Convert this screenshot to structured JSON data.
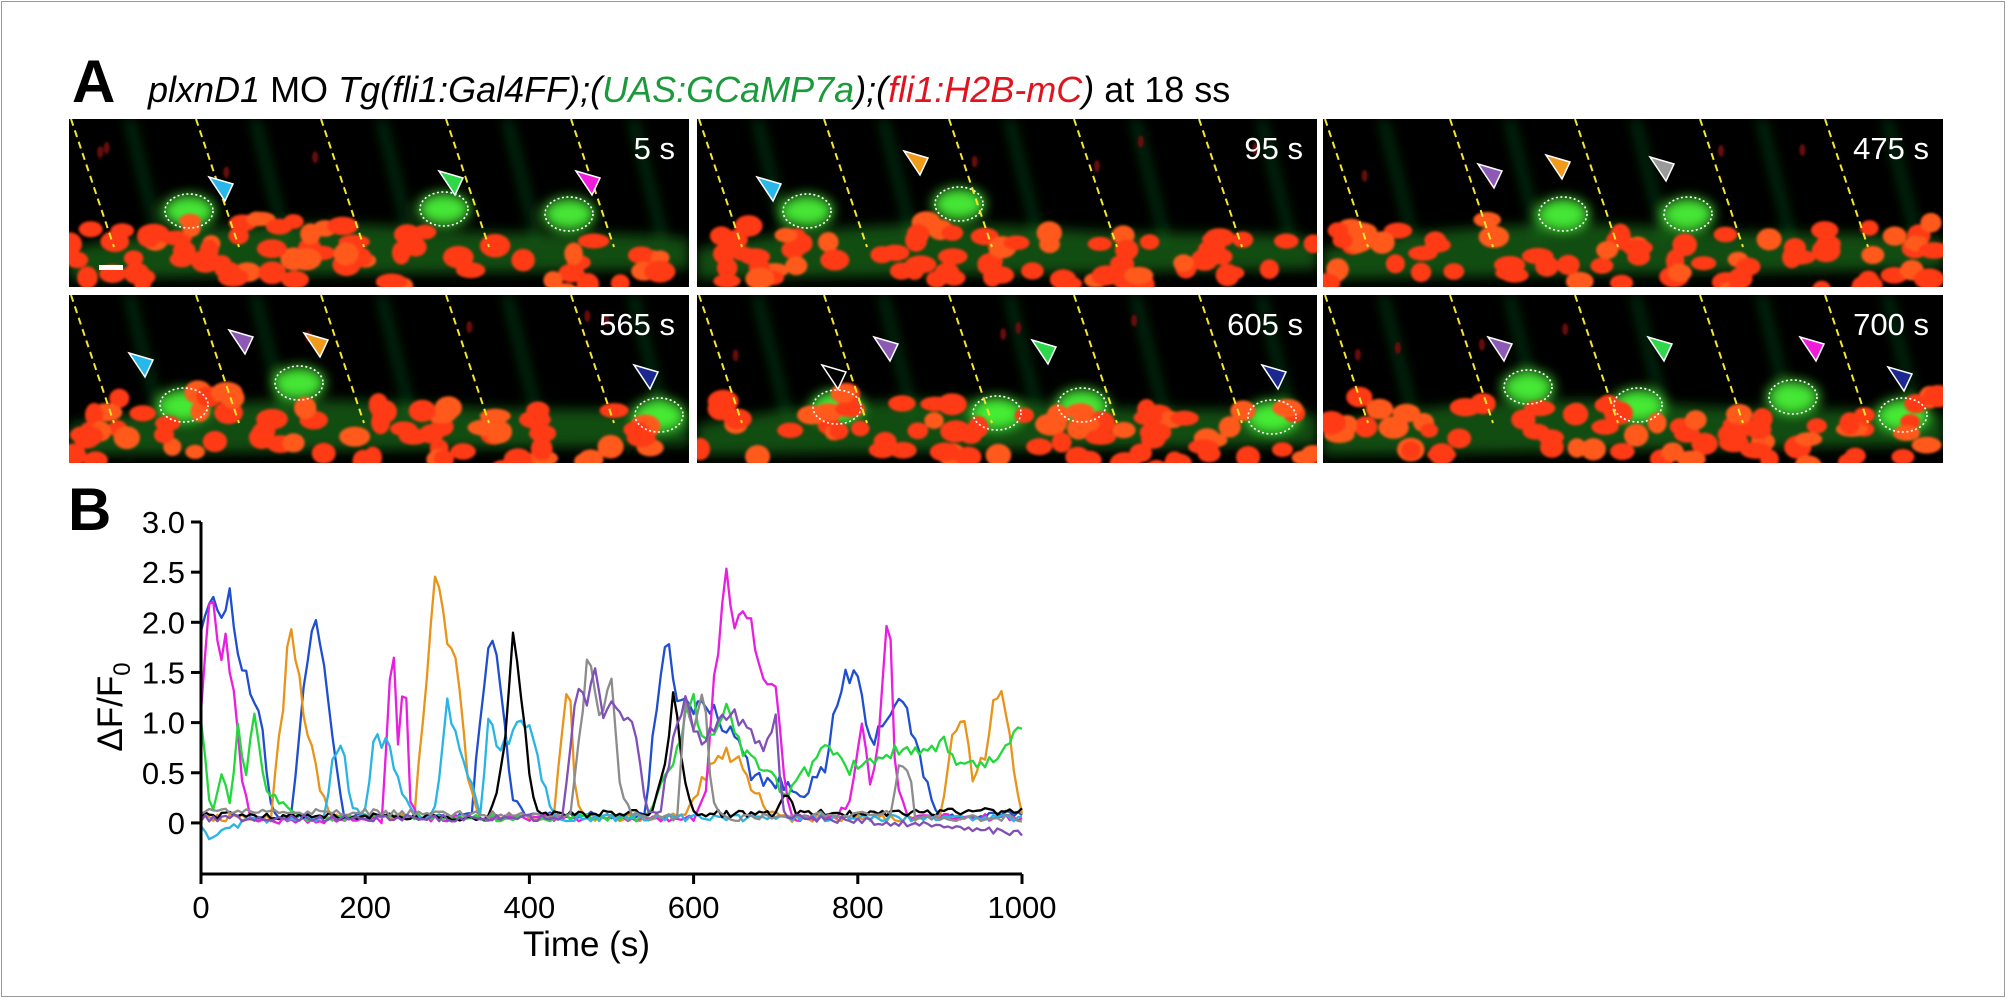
{
  "figure": {
    "panel_a_label": "A",
    "panel_b_label": "B",
    "title_parts": [
      {
        "text": "plxnD1",
        "italic": true,
        "color": "#000000"
      },
      {
        "text": " MO ",
        "italic": false,
        "color": "#000000"
      },
      {
        "text": "Tg(fli1:Gal4FF);(",
        "italic": true,
        "color": "#000000"
      },
      {
        "text": "UAS:GCaMP7a",
        "italic": true,
        "color": "#1a9a3a"
      },
      {
        "text": ");(",
        "italic": true,
        "color": "#000000"
      },
      {
        "text": "fli1:H2B-mC",
        "italic": true,
        "color": "#e0141e"
      },
      {
        "text": ")",
        "italic": true,
        "color": "#000000"
      },
      {
        "text": " at 18 ss",
        "italic": false,
        "color": "#000000"
      }
    ],
    "time_labels": [
      "5 s",
      "95 s",
      "475 s",
      "565 s",
      "605 s",
      "700 s"
    ],
    "arrowhead_colors": {
      "cyan": "#29b6e8",
      "green": "#2ed84a",
      "magenta": "#f01cdc",
      "orange": "#f09a1c",
      "purple": "#8c5ab4",
      "gray": "#9a9a9a",
      "navy": "#1a2890",
      "white": "#ffffff"
    }
  },
  "chart_data": {
    "type": "line",
    "title": "",
    "xlabel": "Time (s)",
    "ylabel_main": "ΔF/F",
    "ylabel_sub": "0",
    "xlim": [
      0,
      1000
    ],
    "ylim": [
      -0.25,
      3.0
    ],
    "xticks": [
      0,
      200,
      400,
      600,
      800,
      1000
    ],
    "yticks": [
      0,
      0.5,
      1.0,
      1.5,
      2.0,
      2.5,
      3.0
    ],
    "ytick_labels": [
      "0",
      "0.5",
      "1.0",
      "1.5",
      "2.0",
      "2.5",
      "3.0"
    ],
    "grid": false,
    "series": [
      {
        "color": "#1f4fd0",
        "keys": [
          [
            0,
            2.0
          ],
          [
            10,
            2.2
          ],
          [
            25,
            2.1
          ],
          [
            35,
            2.3
          ],
          [
            45,
            1.7
          ],
          [
            60,
            1.3
          ],
          [
            75,
            0.9
          ],
          [
            85,
            0.2
          ],
          [
            95,
            0.05
          ],
          [
            110,
            0.08
          ],
          [
            125,
            1.4
          ],
          [
            140,
            2.05
          ],
          [
            150,
            1.6
          ],
          [
            160,
            0.8
          ],
          [
            175,
            0.06
          ],
          [
            300,
            0.05
          ],
          [
            330,
            0.1
          ],
          [
            345,
            1.45
          ],
          [
            355,
            1.9
          ],
          [
            365,
            1.3
          ],
          [
            380,
            0.25
          ],
          [
            395,
            0.08
          ],
          [
            540,
            0.08
          ],
          [
            560,
            1.5
          ],
          [
            568,
            2.0
          ],
          [
            578,
            1.3
          ],
          [
            595,
            1.1
          ],
          [
            615,
            1.2
          ],
          [
            635,
            1.0
          ],
          [
            655,
            0.8
          ],
          [
            670,
            0.5
          ],
          [
            700,
            0.4
          ],
          [
            730,
            0.3
          ],
          [
            760,
            0.5
          ],
          [
            770,
            1.0
          ],
          [
            785,
            1.5
          ],
          [
            800,
            1.4
          ],
          [
            815,
            0.8
          ],
          [
            830,
            1.0
          ],
          [
            845,
            1.2
          ],
          [
            860,
            1.1
          ],
          [
            880,
            0.5
          ],
          [
            895,
            0.1
          ],
          [
            930,
            0.05
          ],
          [
            1000,
            0.1
          ]
        ]
      },
      {
        "color": "#e8941a",
        "keys": [
          [
            0,
            0.05
          ],
          [
            85,
            0.05
          ],
          [
            100,
            1.2
          ],
          [
            108,
            2.1
          ],
          [
            118,
            1.5
          ],
          [
            130,
            0.9
          ],
          [
            145,
            0.35
          ],
          [
            160,
            0.05
          ],
          [
            260,
            0.06
          ],
          [
            275,
            1.5
          ],
          [
            287,
            2.6
          ],
          [
            297,
            1.9
          ],
          [
            312,
            1.6
          ],
          [
            325,
            0.5
          ],
          [
            338,
            0.05
          ],
          [
            430,
            0.06
          ],
          [
            448,
            1.5
          ],
          [
            456,
            0.3
          ],
          [
            466,
            0.05
          ],
          [
            560,
            0.05
          ],
          [
            590,
            0.1
          ],
          [
            620,
            0.6
          ],
          [
            650,
            0.7
          ],
          [
            690,
            0.12
          ],
          [
            720,
            0.04
          ],
          [
            900,
            0.05
          ],
          [
            915,
            0.8
          ],
          [
            930,
            1.0
          ],
          [
            940,
            0.5
          ],
          [
            955,
            0.6
          ],
          [
            965,
            1.2
          ],
          [
            975,
            1.4
          ],
          [
            985,
            0.8
          ],
          [
            995,
            0.3
          ],
          [
            1000,
            0.1
          ]
        ]
      },
      {
        "color": "#e81ee0",
        "keys": [
          [
            0,
            1.2
          ],
          [
            8,
            2.0
          ],
          [
            14,
            2.35
          ],
          [
            22,
            1.65
          ],
          [
            30,
            1.8
          ],
          [
            40,
            1.3
          ],
          [
            50,
            0.4
          ],
          [
            60,
            0.08
          ],
          [
            70,
            0.02
          ],
          [
            220,
            0.03
          ],
          [
            228,
            1.0
          ],
          [
            233,
            2.0
          ],
          [
            240,
            0.8
          ],
          [
            248,
            1.6
          ],
          [
            255,
            0.3
          ],
          [
            265,
            0.05
          ],
          [
            600,
            0.05
          ],
          [
            615,
            0.3
          ],
          [
            625,
            1.4
          ],
          [
            640,
            2.5
          ],
          [
            650,
            1.9
          ],
          [
            662,
            2.2
          ],
          [
            675,
            1.8
          ],
          [
            690,
            1.3
          ],
          [
            700,
            1.4
          ],
          [
            710,
            0.4
          ],
          [
            720,
            0.05
          ],
          [
            770,
            0.04
          ],
          [
            790,
            0.2
          ],
          [
            800,
            0.8
          ],
          [
            808,
            1.0
          ],
          [
            815,
            0.3
          ],
          [
            825,
            0.8
          ],
          [
            838,
            2.25
          ],
          [
            846,
            0.5
          ],
          [
            860,
            0.06
          ],
          [
            1000,
            0.05
          ]
        ]
      },
      {
        "color": "#22d83c",
        "keys": [
          [
            0,
            1.1
          ],
          [
            8,
            0.3
          ],
          [
            15,
            0.15
          ],
          [
            25,
            0.4
          ],
          [
            35,
            0.2
          ],
          [
            45,
            0.9
          ],
          [
            55,
            0.5
          ],
          [
            65,
            1.0
          ],
          [
            80,
            0.35
          ],
          [
            95,
            0.2
          ],
          [
            110,
            0.15
          ],
          [
            125,
            0.05
          ],
          [
            540,
            0.05
          ],
          [
            565,
            0.4
          ],
          [
            585,
            0.9
          ],
          [
            598,
            1.3
          ],
          [
            606,
            0.9
          ],
          [
            620,
            0.8
          ],
          [
            640,
            1.2
          ],
          [
            655,
            0.8
          ],
          [
            670,
            0.6
          ],
          [
            690,
            0.5
          ],
          [
            710,
            0.3
          ],
          [
            735,
            0.5
          ],
          [
            760,
            0.7
          ],
          [
            790,
            0.55
          ],
          [
            820,
            0.65
          ],
          [
            850,
            0.7
          ],
          [
            880,
            0.65
          ],
          [
            905,
            0.8
          ],
          [
            925,
            0.6
          ],
          [
            950,
            0.55
          ],
          [
            975,
            0.75
          ],
          [
            1000,
            0.92
          ]
        ]
      },
      {
        "color": "#29b4e4",
        "keys": [
          [
            0,
            0.0
          ],
          [
            10,
            -0.15
          ],
          [
            25,
            -0.1
          ],
          [
            60,
            0.03
          ],
          [
            150,
            0.05
          ],
          [
            163,
            0.8
          ],
          [
            176,
            0.6
          ],
          [
            185,
            0.15
          ],
          [
            198,
            0.05
          ],
          [
            212,
            0.85
          ],
          [
            225,
            0.8
          ],
          [
            240,
            0.5
          ],
          [
            252,
            0.2
          ],
          [
            262,
            0.05
          ],
          [
            284,
            0.08
          ],
          [
            300,
            1.2
          ],
          [
            312,
            0.8
          ],
          [
            325,
            0.55
          ],
          [
            340,
            0.08
          ],
          [
            352,
            1.2
          ],
          [
            362,
            0.6
          ],
          [
            372,
            0.8
          ],
          [
            385,
            1.0
          ],
          [
            400,
            0.95
          ],
          [
            412,
            0.6
          ],
          [
            428,
            0.1
          ],
          [
            440,
            0.05
          ],
          [
            1000,
            0.05
          ]
        ]
      },
      {
        "color": "#000000",
        "keys": [
          [
            0,
            0.08
          ],
          [
            350,
            0.05
          ],
          [
            362,
            0.35
          ],
          [
            372,
            0.9
          ],
          [
            381,
            1.95
          ],
          [
            390,
            1.2
          ],
          [
            400,
            0.5
          ],
          [
            412,
            0.08
          ],
          [
            550,
            0.1
          ],
          [
            568,
            0.7
          ],
          [
            576,
            1.4
          ],
          [
            585,
            0.6
          ],
          [
            600,
            0.1
          ],
          [
            700,
            0.08
          ],
          [
            710,
            0.35
          ],
          [
            725,
            0.1
          ],
          [
            800,
            0.1
          ],
          [
            1000,
            0.12
          ]
        ]
      },
      {
        "color": "#8c8c8c",
        "keys": [
          [
            0,
            0.12
          ],
          [
            450,
            0.08
          ],
          [
            462,
            0.9
          ],
          [
            472,
            1.8
          ],
          [
            485,
            1.1
          ],
          [
            500,
            1.4
          ],
          [
            512,
            0.3
          ],
          [
            525,
            0.08
          ],
          [
            580,
            0.05
          ],
          [
            590,
            1.2
          ],
          [
            600,
            0.9
          ],
          [
            612,
            1.4
          ],
          [
            622,
            0.2
          ],
          [
            640,
            0.05
          ],
          [
            840,
            0.1
          ],
          [
            850,
            0.5
          ],
          [
            860,
            0.6
          ],
          [
            870,
            0.05
          ],
          [
            1000,
            0.05
          ]
        ]
      },
      {
        "color": "#8050b8",
        "keys": [
          [
            0,
            0.05
          ],
          [
            440,
            0.05
          ],
          [
            458,
            1.3
          ],
          [
            470,
            1.25
          ],
          [
            480,
            1.5
          ],
          [
            490,
            1.1
          ],
          [
            502,
            1.2
          ],
          [
            515,
            1.0
          ],
          [
            528,
            0.9
          ],
          [
            542,
            0.15
          ],
          [
            558,
            0.05
          ],
          [
            575,
            0.8
          ],
          [
            590,
            1.2
          ],
          [
            600,
            0.9
          ],
          [
            615,
            0.8
          ],
          [
            630,
            1.0
          ],
          [
            650,
            1.1
          ],
          [
            670,
            0.9
          ],
          [
            685,
            0.8
          ],
          [
            700,
            1.0
          ],
          [
            710,
            0.1
          ],
          [
            725,
            0.05
          ],
          [
            850,
            0.0
          ],
          [
            920,
            -0.05
          ],
          [
            960,
            -0.08
          ],
          [
            1000,
            -0.1
          ]
        ]
      }
    ]
  }
}
